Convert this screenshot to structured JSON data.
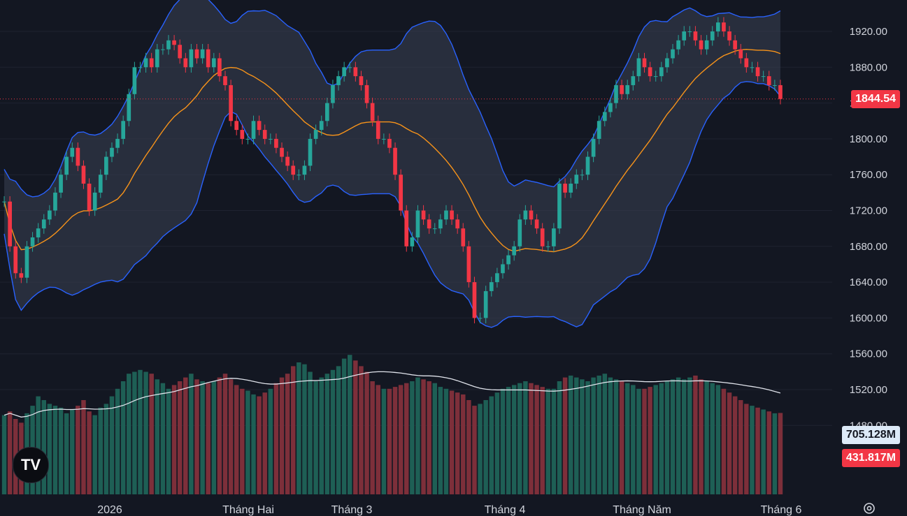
{
  "colors": {
    "up": "#26a69a",
    "down": "#f23645",
    "volUp": "#1e5f55",
    "volDown": "#7d2f3a",
    "bandLine": "#2962ff",
    "bandFill": "#3a4254",
    "mid": "#f7931a",
    "volMa": "#e0e3eb",
    "grid": "#1f2330"
  },
  "price_axis": {
    "ticks": [
      "1920.00",
      "1880.00",
      "1840.00",
      "1800.00",
      "1760.00",
      "1720.00",
      "1680.00",
      "1640.00",
      "1600.00",
      "1560.00",
      "1520.00",
      "1480.00"
    ]
  },
  "time_axis": {
    "labels": [
      "2026",
      "Tháng Hai",
      "Tháng 3",
      "Tháng 4",
      "Tháng Năm",
      "Tháng 6"
    ]
  },
  "last_price": "1844.54",
  "volume_ma_value": "705.128M",
  "volume_value": "431.817M",
  "logo_text": "TV",
  "icons": {
    "logo": "tradingview-logo-icon",
    "settings": "gear-icon"
  },
  "chart_data": {
    "type": "candlestick",
    "ylim": [
      1545,
      1935
    ],
    "grid": true,
    "closes": [
      1730,
      1680,
      1650,
      1645,
      1680,
      1690,
      1700,
      1710,
      1720,
      1740,
      1760,
      1780,
      1790,
      1770,
      1750,
      1720,
      1740,
      1760,
      1780,
      1790,
      1800,
      1820,
      1850,
      1880,
      1880,
      1890,
      1880,
      1900,
      1900,
      1910,
      1905,
      1890,
      1880,
      1900,
      1890,
      1900,
      1880,
      1890,
      1870,
      1860,
      1820,
      1810,
      1800,
      1800,
      1820,
      1810,
      1800,
      1800,
      1790,
      1780,
      1770,
      1760,
      1760,
      1770,
      1800,
      1810,
      1820,
      1840,
      1860,
      1870,
      1880,
      1880,
      1870,
      1860,
      1840,
      1820,
      1800,
      1800,
      1790,
      1760,
      1720,
      1680,
      1690,
      1720,
      1710,
      1700,
      1700,
      1710,
      1720,
      1710,
      1700,
      1680,
      1640,
      1600,
      1600,
      1630,
      1640,
      1650,
      1660,
      1670,
      1680,
      1710,
      1720,
      1710,
      1700,
      1680,
      1680,
      1700,
      1750,
      1740,
      1750,
      1760,
      1760,
      1780,
      1800,
      1820,
      1830,
      1840,
      1860,
      1850,
      1860,
      1870,
      1890,
      1880,
      1870,
      1870,
      1880,
      1890,
      1900,
      1910,
      1920,
      1920,
      1910,
      1900,
      1910,
      1920,
      1930,
      1920,
      1910,
      1900,
      1890,
      1880,
      1880,
      1870,
      1870,
      1860,
      1860,
      1844.54
    ],
    "volumes_m": [
      420,
      440,
      400,
      380,
      430,
      470,
      520,
      500,
      480,
      470,
      460,
      430,
      450,
      470,
      500,
      440,
      420,
      460,
      480,
      520,
      560,
      600,
      640,
      650,
      660,
      650,
      640,
      610,
      590,
      560,
      580,
      600,
      620,
      640,
      610,
      600,
      590,
      600,
      620,
      640,
      610,
      580,
      560,
      550,
      530,
      520,
      540,
      560,
      590,
      620,
      640,
      680,
      700,
      690,
      650,
      600,
      620,
      640,
      660,
      680,
      720,
      740,
      710,
      680,
      650,
      600,
      580,
      560,
      560,
      570,
      580,
      590,
      600,
      620,
      610,
      600,
      590,
      570,
      560,
      550,
      540,
      530,
      500,
      470,
      480,
      500,
      520,
      540,
      560,
      570,
      580,
      590,
      600,
      590,
      580,
      570,
      560,
      560,
      600,
      620,
      630,
      620,
      610,
      600,
      620,
      630,
      640,
      620,
      610,
      600,
      590,
      580,
      560,
      560,
      570,
      580,
      590,
      600,
      610,
      620,
      610,
      620,
      630,
      610,
      600,
      590,
      580,
      560,
      540,
      520,
      500,
      480,
      470,
      460,
      450,
      440,
      430,
      431.817
    ]
  }
}
